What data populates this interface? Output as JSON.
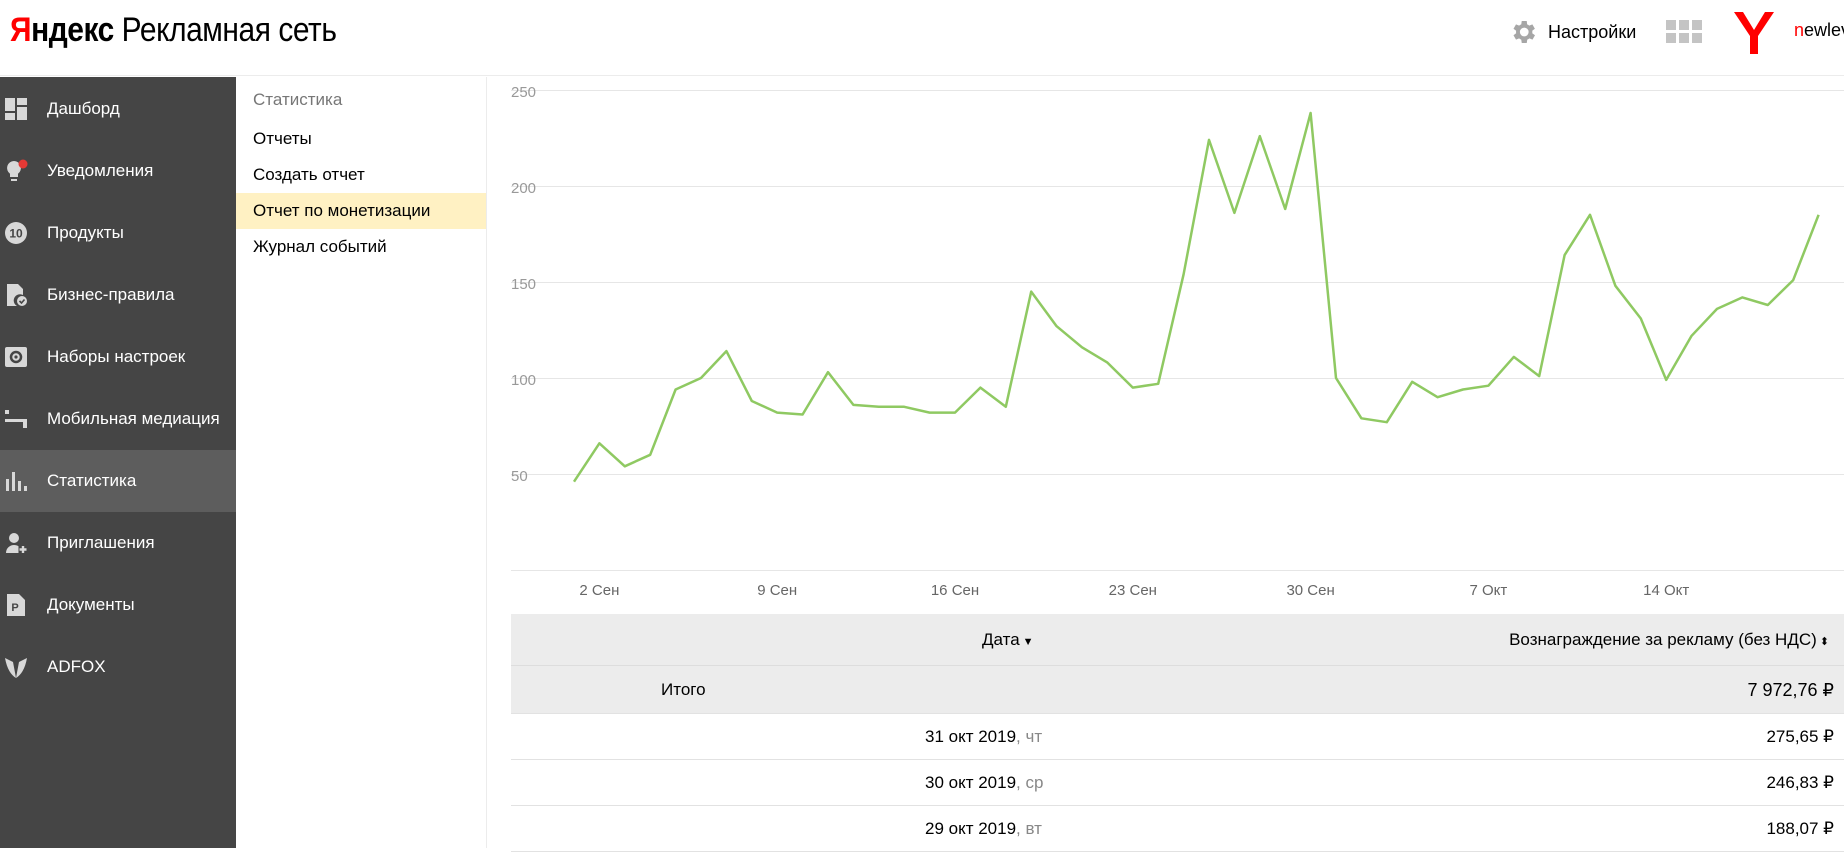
{
  "header": {
    "logo_ya": "Я",
    "logo_rest": "ндекс",
    "logo_product": "Рекламная сеть",
    "settings_label": "Настройки",
    "user_first": "n",
    "user_rest": "ewlev"
  },
  "sidebar": {
    "items": [
      {
        "label": "Дашборд",
        "icon": "dashboard-icon"
      },
      {
        "label": "Уведомления",
        "icon": "bulb-icon"
      },
      {
        "label": "Продукты",
        "icon": "products-icon"
      },
      {
        "label": "Бизнес-правила",
        "icon": "rules-icon"
      },
      {
        "label": "Наборы настроек",
        "icon": "settings-set-icon"
      },
      {
        "label": "Мобильная медиация",
        "icon": "mediation-icon"
      },
      {
        "label": "Статистика",
        "icon": "stats-icon"
      },
      {
        "label": "Приглашения",
        "icon": "invite-icon"
      },
      {
        "label": "Документы",
        "icon": "documents-icon"
      },
      {
        "label": "ADFOX",
        "icon": "adfox-icon"
      }
    ],
    "products_badge": "10"
  },
  "submenu": {
    "title": "Статистика",
    "items": [
      "Отчеты",
      "Создать отчет",
      "Отчет по монетизации",
      "Журнал событий"
    ]
  },
  "chart_data": {
    "type": "line",
    "title": "",
    "xlabel": "",
    "ylabel": "",
    "ylim": [
      0,
      250
    ],
    "yticks": [
      50,
      100,
      150,
      200,
      250
    ],
    "grid": true,
    "line_color": "#8fc962",
    "x_start": "1 Сен",
    "x_ticks": [
      {
        "label": "2 Сен",
        "day": 1
      },
      {
        "label": "9 Сен",
        "day": 8
      },
      {
        "label": "16 Сен",
        "day": 15
      },
      {
        "label": "23 Сен",
        "day": 22
      },
      {
        "label": "30 Сен",
        "day": 29
      },
      {
        "label": "7 Окт",
        "day": 36
      },
      {
        "label": "14 Окт",
        "day": 43
      }
    ],
    "series": [
      {
        "values": [
          46,
          66,
          54,
          60,
          94,
          100,
          114,
          88,
          82,
          81,
          103,
          86,
          85,
          85,
          82,
          82,
          95,
          85,
          145,
          127,
          116,
          108,
          95,
          97,
          154,
          224,
          186,
          226,
          188,
          238,
          100,
          79,
          77,
          98,
          90,
          94,
          96,
          111,
          101,
          164,
          185,
          148,
          131,
          99,
          122,
          136,
          142,
          138,
          151,
          185
        ]
      }
    ]
  },
  "table": {
    "header_date": "Дата",
    "header_reward": "Вознаграждение за рекламу (без НДС)",
    "total_label": "Итого",
    "total_value": "7 972,76 ₽",
    "rows": [
      {
        "date": "31 окт 2019",
        "weekday": ", чт",
        "value": "275,65 ₽"
      },
      {
        "date": "30 окт 2019",
        "weekday": ", ср",
        "value": "246,83 ₽"
      },
      {
        "date": "29 окт 2019",
        "weekday": ", вт",
        "value": "188,07 ₽"
      }
    ]
  }
}
